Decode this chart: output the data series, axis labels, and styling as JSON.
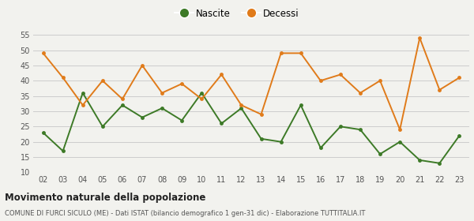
{
  "years": [
    "02",
    "03",
    "04",
    "05",
    "06",
    "07",
    "08",
    "09",
    "10",
    "11",
    "12",
    "13",
    "14",
    "15",
    "16",
    "17",
    "18",
    "19",
    "20",
    "21",
    "22",
    "23"
  ],
  "nascite": [
    23,
    17,
    36,
    25,
    32,
    28,
    31,
    27,
    36,
    26,
    31,
    21,
    20,
    32,
    18,
    25,
    24,
    16,
    20,
    14,
    13,
    22
  ],
  "decessi": [
    49,
    41,
    32,
    40,
    34,
    45,
    36,
    39,
    34,
    42,
    32,
    29,
    49,
    49,
    40,
    42,
    36,
    40,
    24,
    54,
    37,
    41
  ],
  "nascite_color": "#3d7a27",
  "decessi_color": "#e07b1a",
  "bg_color": "#f2f2ee",
  "grid_color": "#cccccc",
  "ylim": [
    10,
    57
  ],
  "yticks": [
    10,
    15,
    20,
    25,
    30,
    35,
    40,
    45,
    50,
    55
  ],
  "title": "Movimento naturale della popolazione",
  "subtitle": "COMUNE DI FURCI SICULO (ME) - Dati ISTAT (bilancio demografico 1 gen-31 dic) - Elaborazione TUTTITALIA.IT",
  "legend_nascite": "Nascite",
  "legend_decessi": "Decessi"
}
